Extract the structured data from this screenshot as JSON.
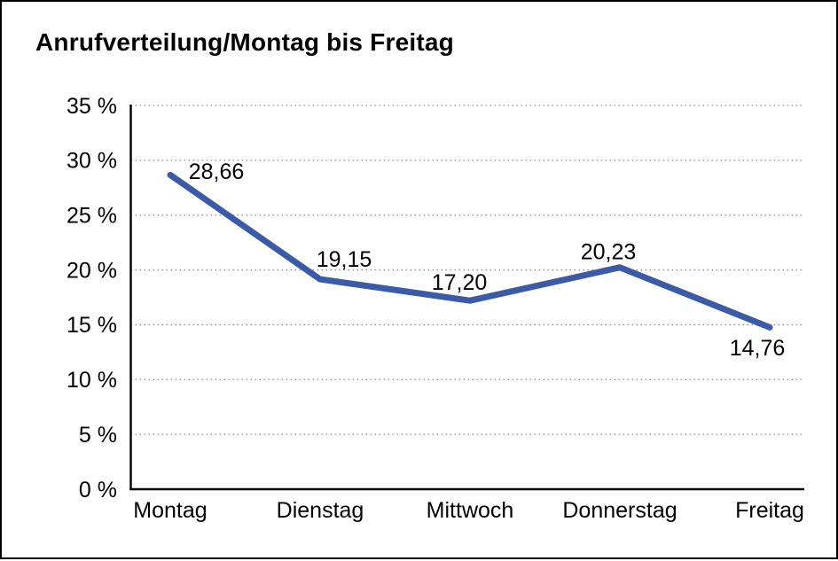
{
  "chart_data": {
    "type": "line",
    "title": "Anrufverteilung/Montag bis Freitag",
    "categories": [
      "Montag",
      "Dienstag",
      "Mittwoch",
      "Donnerstag",
      "Freitag"
    ],
    "series": [
      {
        "name": "Anrufverteilung",
        "values": [
          28.66,
          19.15,
          17.2,
          20.23,
          14.76
        ]
      }
    ],
    "point_labels": [
      "28,66",
      "19,15",
      "17,20",
      "20,23",
      "14,76"
    ],
    "y_ticks": [
      {
        "value": 0,
        "label": "0 %"
      },
      {
        "value": 5,
        "label": "5 %"
      },
      {
        "value": 10,
        "label": "10 %"
      },
      {
        "value": 15,
        "label": "15 %"
      },
      {
        "value": 20,
        "label": "20 %"
      },
      {
        "value": 25,
        "label": "25 %"
      },
      {
        "value": 30,
        "label": "30 %"
      },
      {
        "value": 35,
        "label": "35 %"
      }
    ],
    "ylim": [
      0,
      35
    ],
    "xlabel": "",
    "ylabel": "",
    "grid": "horizontal-dotted",
    "legend": "none",
    "colors": {
      "line": "#3B5BA9",
      "text": "#000000",
      "grid": "#8e8e8e",
      "axis": "#000000",
      "background": "#ffffff",
      "frame_border": "#000000"
    }
  }
}
